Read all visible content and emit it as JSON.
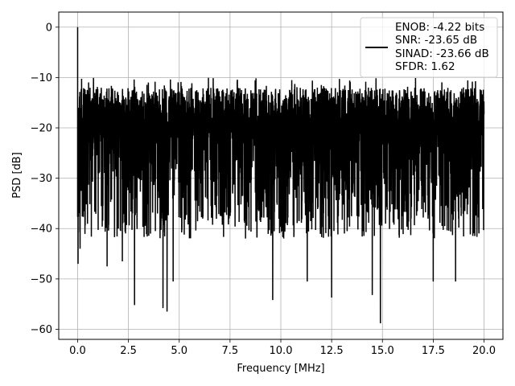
{
  "chart_data": {
    "type": "line",
    "title": "",
    "xlabel": "Frequency [MHz]",
    "ylabel": "PSD [dB]",
    "xlim": [
      -0.93,
      20.93
    ],
    "ylim": [
      -62,
      3
    ],
    "xticks": [
      0.0,
      2.5,
      5.0,
      7.5,
      10.0,
      12.5,
      15.0,
      17.5,
      20.0
    ],
    "xtick_labels": [
      "0.0",
      "2.5",
      "5.0",
      "7.5",
      "10.0",
      "12.5",
      "15.0",
      "17.5",
      "20.0"
    ],
    "yticks": [
      0,
      -10,
      -20,
      -30,
      -40,
      -50,
      -60
    ],
    "ytick_labels": [
      "0",
      "−10",
      "−20",
      "−30",
      "−40",
      "−50",
      "−60"
    ],
    "grid": true,
    "legend_position": "top-right",
    "legend_entries": [
      "ENOB: -4.22 bits",
      "SNR: -23.65 dB",
      "SINAD: -23.66 dB",
      "SFDR: 1.62"
    ],
    "line_color": "#000000",
    "series": [
      {
        "x_range": [
          0.0,
          20.0
        ],
        "noise_band": [
          -35,
          -12
        ],
        "peak": {
          "x": 0.0,
          "y": 0.0
        },
        "deep_dips": [
          {
            "x": 0.02,
            "y": -47
          },
          {
            "x": 0.12,
            "y": -44
          },
          {
            "x": 1.45,
            "y": -47.5
          },
          {
            "x": 2.2,
            "y": -46.5
          },
          {
            "x": 2.8,
            "y": -55.2
          },
          {
            "x": 4.2,
            "y": -55.8
          },
          {
            "x": 4.4,
            "y": -56.5
          },
          {
            "x": 4.7,
            "y": -50.5
          },
          {
            "x": 9.6,
            "y": -54.2
          },
          {
            "x": 11.3,
            "y": -50.5
          },
          {
            "x": 12.5,
            "y": -53.7
          },
          {
            "x": 14.5,
            "y": -53.2
          },
          {
            "x": 14.9,
            "y": -58.8
          },
          {
            "x": 17.5,
            "y": -50.5
          },
          {
            "x": 18.6,
            "y": -50.5
          }
        ]
      }
    ]
  }
}
